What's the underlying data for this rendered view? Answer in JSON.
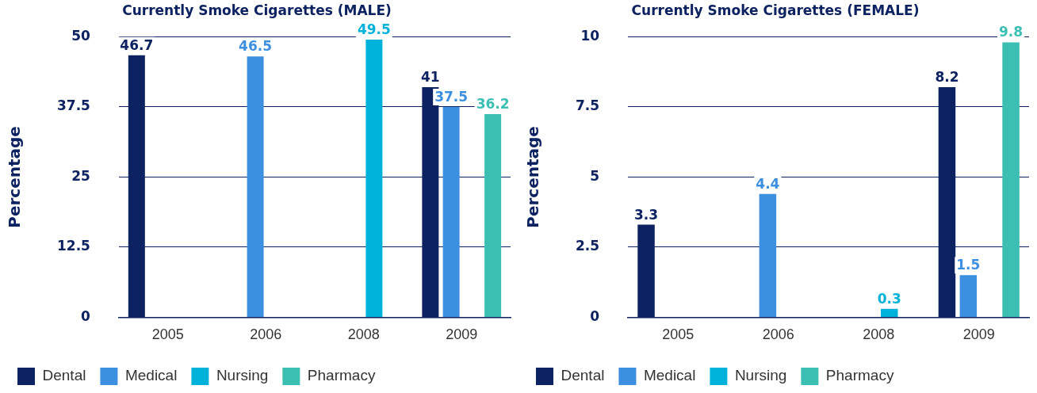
{
  "chart_data": [
    {
      "type": "bar",
      "title": "Currently Smoke Cigarettes (MALE)",
      "ylabel": "Percentage",
      "categories": [
        "2005",
        "2006",
        "2008",
        "2009"
      ],
      "series": [
        {
          "name": "Dental",
          "color": "#0d2260",
          "values": [
            46.7,
            null,
            null,
            41
          ]
        },
        {
          "name": "Medical",
          "color": "#3d8fe0",
          "values": [
            null,
            46.5,
            null,
            37.5
          ]
        },
        {
          "name": "Nursing",
          "color": "#00b2d9",
          "values": [
            null,
            null,
            49.5,
            null
          ]
        },
        {
          "name": "Pharmacy",
          "color": "#3bbfb3",
          "values": [
            null,
            null,
            null,
            36.2
          ]
        }
      ],
      "ylim": [
        0,
        50
      ],
      "yticks": [
        0,
        12.5,
        25,
        37.5,
        50
      ],
      "grid": "y",
      "legend": "bottom",
      "data_labels": true
    },
    {
      "type": "bar",
      "title": "Currently Smoke Cigarettes (FEMALE)",
      "ylabel": "Percentage",
      "categories": [
        "2005",
        "2006",
        "2008",
        "2009"
      ],
      "series": [
        {
          "name": "Dental",
          "color": "#0d2260",
          "values": [
            3.3,
            null,
            null,
            8.2
          ]
        },
        {
          "name": "Medical",
          "color": "#3d8fe0",
          "values": [
            null,
            4.4,
            null,
            1.5
          ]
        },
        {
          "name": "Nursing",
          "color": "#00b2d9",
          "values": [
            null,
            null,
            0.3,
            null
          ]
        },
        {
          "name": "Pharmacy",
          "color": "#3bbfb3",
          "values": [
            null,
            null,
            null,
            9.8
          ]
        }
      ],
      "ylim": [
        0,
        10
      ],
      "yticks": [
        0,
        2.5,
        5,
        7.5,
        10
      ],
      "grid": "y",
      "legend": "bottom",
      "data_labels": true
    }
  ]
}
